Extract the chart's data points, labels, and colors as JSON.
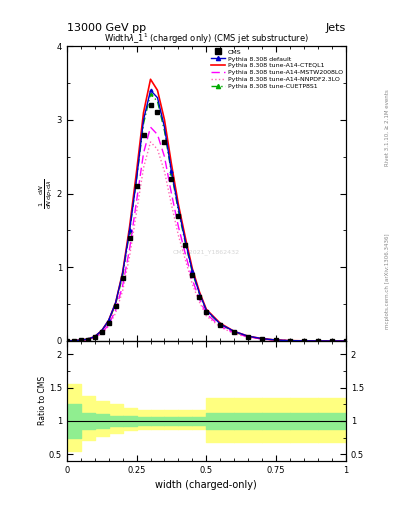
{
  "header_left": "13000 GeV pp",
  "header_right": "Jets",
  "plot_title": "Width$\\lambda$\\_1$^1$ (charged only) (CMS jet substructure)",
  "xlabel": "width (charged-only)",
  "ylabel_main": "$\\frac{1}{\\mathrm{d}N}\\frac{\\mathrm{d}N}{\\mathrm{d}p_{\\mathrm{T}}\\mathrm{d}\\lambda}$",
  "ylabel_ratio": "Ratio to CMS",
  "right_label_top": "Rivet 3.1.10, ≥ 2.1M events",
  "right_label_bottom": "mcplots.cern.ch [arXiv:1306.3436]",
  "watermark": "CMS_2021_Y1862432",
  "x_data": [
    0.0,
    0.025,
    0.05,
    0.075,
    0.1,
    0.125,
    0.15,
    0.175,
    0.2,
    0.225,
    0.25,
    0.275,
    0.3,
    0.325,
    0.35,
    0.375,
    0.4,
    0.425,
    0.45,
    0.475,
    0.5,
    0.55,
    0.6,
    0.65,
    0.7,
    0.75,
    0.8,
    0.85,
    0.9,
    0.95,
    1.0
  ],
  "cms_data": [
    0.0,
    0.005,
    0.01,
    0.02,
    0.05,
    0.12,
    0.25,
    0.48,
    0.85,
    1.4,
    2.1,
    2.8,
    3.2,
    3.1,
    2.7,
    2.2,
    1.7,
    1.3,
    0.9,
    0.6,
    0.4,
    0.22,
    0.12,
    0.06,
    0.03,
    0.01,
    0.005,
    0.002,
    0.001,
    0.0005,
    0.0
  ],
  "default_data": [
    0.0,
    0.005,
    0.012,
    0.025,
    0.06,
    0.14,
    0.28,
    0.52,
    0.92,
    1.5,
    2.2,
    3.0,
    3.4,
    3.3,
    2.9,
    2.3,
    1.8,
    1.35,
    0.95,
    0.65,
    0.42,
    0.23,
    0.13,
    0.065,
    0.032,
    0.013,
    0.005,
    0.002,
    0.001,
    0.0005,
    0.0
  ],
  "cteql1_data": [
    0.0,
    0.005,
    0.012,
    0.025,
    0.06,
    0.14,
    0.28,
    0.52,
    0.93,
    1.55,
    2.3,
    3.1,
    3.55,
    3.4,
    3.0,
    2.4,
    1.85,
    1.4,
    0.98,
    0.67,
    0.43,
    0.24,
    0.13,
    0.065,
    0.032,
    0.013,
    0.005,
    0.002,
    0.001,
    0.0005,
    0.0
  ],
  "mstw_data": [
    0.0,
    0.005,
    0.01,
    0.02,
    0.05,
    0.11,
    0.22,
    0.42,
    0.75,
    1.25,
    1.9,
    2.55,
    2.9,
    2.8,
    2.5,
    2.0,
    1.55,
    1.18,
    0.83,
    0.57,
    0.37,
    0.2,
    0.11,
    0.055,
    0.027,
    0.011,
    0.004,
    0.0018,
    0.0008,
    0.0004,
    0.0
  ],
  "nnpdf_data": [
    0.0,
    0.004,
    0.009,
    0.018,
    0.045,
    0.1,
    0.2,
    0.38,
    0.68,
    1.15,
    1.75,
    2.35,
    2.7,
    2.6,
    2.3,
    1.85,
    1.43,
    1.1,
    0.77,
    0.53,
    0.34,
    0.19,
    0.1,
    0.05,
    0.025,
    0.01,
    0.004,
    0.0016,
    0.0007,
    0.0003,
    0.0
  ],
  "cuetp_data": [
    0.0,
    0.005,
    0.012,
    0.024,
    0.058,
    0.135,
    0.27,
    0.5,
    0.88,
    1.48,
    2.2,
    2.95,
    3.35,
    3.25,
    2.85,
    2.28,
    1.76,
    1.33,
    0.93,
    0.64,
    0.41,
    0.23,
    0.12,
    0.062,
    0.03,
    0.012,
    0.005,
    0.002,
    0.001,
    0.0004,
    0.0
  ],
  "ratio_x_edges": [
    0.0,
    0.05,
    0.1,
    0.15,
    0.2,
    0.25,
    0.3,
    0.35,
    0.4,
    0.45,
    0.5,
    0.6,
    0.7,
    0.8,
    0.9,
    1.0
  ],
  "green_band_lo": [
    0.75,
    0.88,
    0.9,
    0.92,
    0.93,
    0.94,
    0.94,
    0.94,
    0.94,
    0.94,
    0.88,
    0.88,
    0.88,
    0.88,
    0.88
  ],
  "green_band_hi": [
    1.25,
    1.12,
    1.1,
    1.08,
    1.07,
    1.06,
    1.06,
    1.06,
    1.06,
    1.06,
    1.12,
    1.12,
    1.12,
    1.12,
    1.12
  ],
  "yellow_band_lo": [
    0.55,
    0.72,
    0.78,
    0.82,
    0.86,
    0.88,
    0.88,
    0.88,
    0.88,
    0.88,
    0.68,
    0.68,
    0.68,
    0.68,
    0.68
  ],
  "yellow_band_hi": [
    1.55,
    1.38,
    1.3,
    1.25,
    1.2,
    1.17,
    1.17,
    1.17,
    1.17,
    1.17,
    1.35,
    1.35,
    1.35,
    1.35,
    1.35
  ],
  "ylim_main": [
    0,
    4.0
  ],
  "ylim_ratio": [
    0.4,
    2.2
  ],
  "xlim": [
    0.0,
    1.0
  ],
  "color_cms": "#000000",
  "color_default": "#0000cc",
  "color_cteql1": "#ff0000",
  "color_mstw": "#ff00ff",
  "color_nnpdf": "#ff69b4",
  "color_cuetp": "#00aa00",
  "color_green_band": "#90ee90",
  "color_yellow_band": "#ffff80"
}
